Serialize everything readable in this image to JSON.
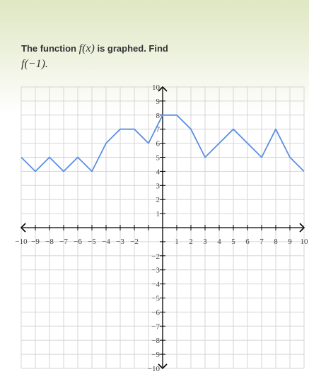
{
  "question": {
    "prefix": "The function",
    "function_expr": "f(x)",
    "suffix": "is graphed. Find",
    "target_expr": "f(−1)."
  },
  "colors": {
    "grid": "#d6d6d6",
    "axis": "#000000",
    "series": "#5b8fe0",
    "text": "#333333"
  },
  "chart_data": {
    "type": "line",
    "title": "",
    "xlabel": "",
    "ylabel": "",
    "xlim": [
      -10,
      10
    ],
    "ylim": [
      -10,
      10
    ],
    "grid": true,
    "x_ticks": [
      -10,
      -9,
      -8,
      -7,
      -6,
      -5,
      -4,
      -3,
      -2,
      -1,
      1,
      2,
      3,
      4,
      5,
      6,
      7,
      8,
      9,
      10
    ],
    "y_ticks": [
      -10,
      -9,
      -8,
      -7,
      -6,
      -5,
      -4,
      -3,
      -2,
      -1,
      1,
      2,
      3,
      4,
      5,
      6,
      7,
      8,
      9,
      10
    ],
    "x_tick_labels": [
      "−10",
      "−9",
      "−8",
      "−7",
      "−6",
      "−5",
      "−4",
      "−3",
      "−2",
      "",
      "1",
      "2",
      "3",
      "4",
      "5",
      "6",
      "7",
      "8",
      "9",
      "10"
    ],
    "y_tick_labels": [
      "−10",
      "−9",
      "−8",
      "−7",
      "−6",
      "−5",
      "−4",
      "−3",
      "−2",
      "",
      "1",
      "2",
      "3",
      "4",
      "5",
      "6",
      "7",
      "8",
      "9",
      "10"
    ],
    "series": [
      {
        "x": [
          -10,
          -9,
          -8,
          -7,
          -6,
          -5,
          -4,
          -3,
          -2,
          -1,
          0,
          1,
          2,
          3,
          4,
          5,
          6,
          7,
          8,
          9,
          10
        ],
        "y": [
          5,
          4,
          5,
          4,
          5,
          4,
          6,
          7,
          7,
          6,
          8,
          8,
          7,
          5,
          6,
          7,
          6,
          5,
          7,
          5,
          4
        ]
      }
    ]
  }
}
